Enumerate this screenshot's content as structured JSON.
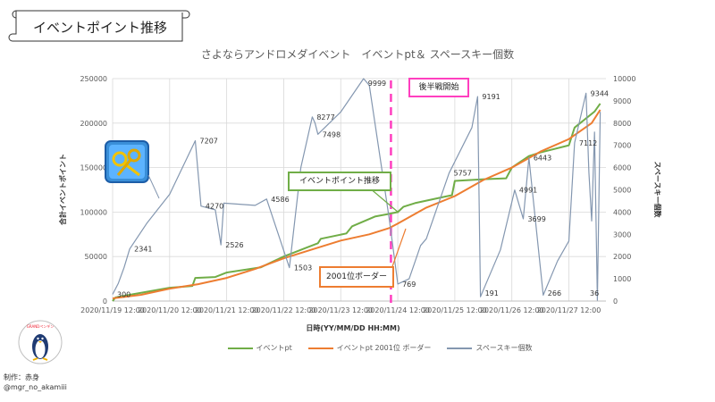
{
  "banner": {
    "title": "イベントポイント推移"
  },
  "colors": {
    "event_pt": "#70ad47",
    "border_2001": "#ed7d31",
    "space_key": "#8497b0",
    "latter_half": "#ff3fbf"
  },
  "icons": {
    "item_image": "space-key-item-icon",
    "logo": "penguin-logo-icon"
  },
  "callouts": {
    "event_pt": "イベントポイント推移",
    "border": "2001位ボーダー",
    "latter_half": "後半戦開始"
  },
  "credit": {
    "line1": "制作：赤身",
    "line2": "@mgr_no_akamiii"
  },
  "logo_text": "GRANDペンギン",
  "chart_data": {
    "type": "line",
    "title": "さよならアンドロメダイベント　イベントpt＆ スペースキー個数",
    "xlabel": "日時(YY/MM/DD HH:MM)",
    "ylabel": "合計イベントポイント",
    "y2label": "スペースキー個数",
    "ylim": [
      0,
      250000
    ],
    "y2lim": [
      0,
      10000
    ],
    "yticks": [
      0,
      50000,
      100000,
      150000,
      200000,
      250000
    ],
    "y2ticks": [
      0,
      1000,
      2000,
      3000,
      4000,
      5000,
      6000,
      7000,
      8000,
      9000,
      10000
    ],
    "xlim": [
      0,
      8.65
    ],
    "xticks": [
      {
        "x": 0,
        "label": "2020/11/19 12:00"
      },
      {
        "x": 1,
        "label": "2020/11/20 12:00"
      },
      {
        "x": 2,
        "label": "2020/11/21 12:00"
      },
      {
        "x": 3,
        "label": "2020/11/22 12:00"
      },
      {
        "x": 4,
        "label": "2020/11/23 12:00"
      },
      {
        "x": 5,
        "label": "2020/11/24 12:00"
      },
      {
        "x": 6,
        "label": "2020/11/25 12:00"
      },
      {
        "x": 7,
        "label": "2020/11/26 12:00"
      },
      {
        "x": 8,
        "label": "2020/11/27 12:00"
      }
    ],
    "grid": true,
    "legend": "bottom",
    "latter_half_start_x": 4.88,
    "series": [
      {
        "name": "イベントpt",
        "axis": "left",
        "points": [
          [
            0,
            0
          ],
          [
            0.05,
            4000
          ],
          [
            0.3,
            7000
          ],
          [
            1,
            15000
          ],
          [
            1.4,
            17000
          ],
          [
            1.45,
            26000
          ],
          [
            1.8,
            27000
          ],
          [
            2,
            32000
          ],
          [
            2.6,
            38000
          ],
          [
            3,
            50000
          ],
          [
            3.4,
            60000
          ],
          [
            3.6,
            65000
          ],
          [
            3.65,
            70000
          ],
          [
            4.1,
            76000
          ],
          [
            4.2,
            84000
          ],
          [
            4.6,
            95000
          ],
          [
            4.85,
            98000
          ],
          [
            5,
            100000
          ],
          [
            5.1,
            106000
          ],
          [
            5.3,
            110000
          ],
          [
            5.8,
            117000
          ],
          [
            5.95,
            119000
          ],
          [
            6,
            135000
          ],
          [
            6.55,
            137000
          ],
          [
            6.9,
            138000
          ],
          [
            7,
            150000
          ],
          [
            7.3,
            163000
          ],
          [
            7.5,
            167000
          ],
          [
            8,
            175000
          ],
          [
            8.1,
            195000
          ],
          [
            8.45,
            213000
          ],
          [
            8.55,
            222000
          ]
        ]
      },
      {
        "name": "イベントpt 2001位 ボーダー",
        "axis": "left",
        "points": [
          [
            0,
            3000
          ],
          [
            0.5,
            7000
          ],
          [
            1,
            14000
          ],
          [
            1.5,
            19000
          ],
          [
            2,
            26000
          ],
          [
            2.5,
            36000
          ],
          [
            3,
            48000
          ],
          [
            3.5,
            58000
          ],
          [
            4,
            68000
          ],
          [
            4.5,
            75000
          ],
          [
            4.85,
            82000
          ],
          [
            5,
            87000
          ],
          [
            5.5,
            105000
          ],
          [
            6,
            118000
          ],
          [
            6.5,
            136000
          ],
          [
            7,
            150000
          ],
          [
            7.5,
            168000
          ],
          [
            8,
            182000
          ],
          [
            8.4,
            200000
          ],
          [
            8.55,
            215000
          ]
        ]
      },
      {
        "name": "スペースキー個数",
        "axis": "right",
        "points": [
          [
            0,
            300
          ],
          [
            0.1,
            800
          ],
          [
            0.2,
            1500
          ],
          [
            0.3,
            2341
          ],
          [
            0.6,
            3500
          ],
          [
            1,
            4800
          ],
          [
            1.45,
            7207
          ],
          [
            1.55,
            4270
          ],
          [
            1.8,
            4100
          ],
          [
            1.9,
            2526
          ],
          [
            1.95,
            4400
          ],
          [
            2.5,
            4300
          ],
          [
            2.7,
            4586
          ],
          [
            3.1,
            1503
          ],
          [
            3.3,
            6000
          ],
          [
            3.5,
            8277
          ],
          [
            3.55,
            8000
          ],
          [
            3.6,
            7498
          ],
          [
            4,
            8500
          ],
          [
            4.4,
            9999
          ],
          [
            4.5,
            9700
          ],
          [
            4.85,
            3700
          ],
          [
            5,
            769
          ],
          [
            5.2,
            1000
          ],
          [
            5.4,
            2500
          ],
          [
            5.5,
            2800
          ],
          [
            5.9,
            5757
          ],
          [
            6.3,
            7800
          ],
          [
            6.4,
            9191
          ],
          [
            6.45,
            191
          ],
          [
            6.8,
            2300
          ],
          [
            7.05,
            4991
          ],
          [
            7.2,
            3699
          ],
          [
            7.3,
            6443
          ],
          [
            7.55,
            266
          ],
          [
            7.8,
            1800
          ],
          [
            8,
            2700
          ],
          [
            8.1,
            7112
          ],
          [
            8.3,
            9344
          ],
          [
            8.35,
            5800
          ],
          [
            8.4,
            3600
          ],
          [
            8.45,
            7600
          ],
          [
            8.5,
            36
          ],
          [
            8.55,
            8500
          ]
        ]
      }
    ],
    "annotations": [
      {
        "series": 2,
        "x": 0,
        "value": 300,
        "label": "300"
      },
      {
        "series": 2,
        "x": 0.3,
        "value": 2341,
        "label": "2341"
      },
      {
        "series": 2,
        "x": 1.45,
        "value": 7207,
        "label": "7207"
      },
      {
        "series": 2,
        "x": 1.55,
        "value": 4270,
        "label": "4270"
      },
      {
        "series": 2,
        "x": 1.9,
        "value": 2526,
        "label": "2526"
      },
      {
        "series": 2,
        "x": 2.7,
        "value": 4586,
        "label": "4586"
      },
      {
        "series": 2,
        "x": 3.1,
        "value": 1503,
        "label": "1503"
      },
      {
        "series": 2,
        "x": 3.5,
        "value": 8277,
        "label": "8277"
      },
      {
        "series": 2,
        "x": 3.6,
        "value": 7498,
        "label": "7498"
      },
      {
        "series": 2,
        "x": 4.4,
        "value": 9999,
        "label": "9999"
      },
      {
        "series": 2,
        "x": 5,
        "value": 769,
        "label": "769"
      },
      {
        "series": 2,
        "x": 5.9,
        "value": 5757,
        "label": "5757"
      },
      {
        "series": 2,
        "x": 6.4,
        "value": 9191,
        "label": "9191"
      },
      {
        "series": 2,
        "x": 6.45,
        "value": 191,
        "label": "191"
      },
      {
        "series": 2,
        "x": 7.05,
        "value": 4991,
        "label": "4991"
      },
      {
        "series": 2,
        "x": 7.2,
        "value": 3699,
        "label": "3699"
      },
      {
        "series": 2,
        "x": 7.3,
        "value": 6443,
        "label": "6443"
      },
      {
        "series": 2,
        "x": 7.55,
        "value": 266,
        "label": "266"
      },
      {
        "series": 2,
        "x": 8.1,
        "value": 7112,
        "label": "7112"
      },
      {
        "series": 2,
        "x": 8.3,
        "value": 9344,
        "label": "9344"
      },
      {
        "series": 2,
        "x": 8.5,
        "value": 36,
        "label": "36"
      }
    ]
  }
}
